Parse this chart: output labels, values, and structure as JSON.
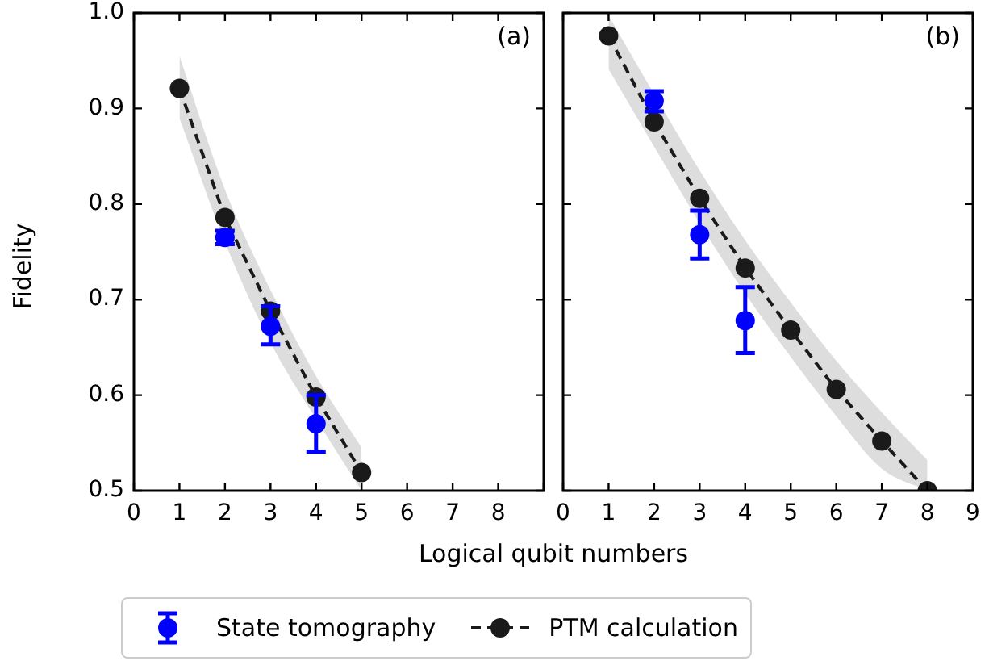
{
  "chart_data": [
    {
      "type": "line",
      "ylabel": "Fidelity",
      "xlabel": "Logical qubit numbers",
      "annotations": [
        "(a)"
      ],
      "legend": "bottom",
      "grid": false,
      "xlim": [
        0,
        9
      ],
      "xticks": [
        0,
        1,
        2,
        3,
        4,
        5,
        6,
        7,
        8,
        {
          "value": 9,
          "label": null
        }
      ],
      "ylim": [
        0.5,
        1.0
      ],
      "yticks": [
        0.5,
        0.6,
        0.7,
        0.8,
        0.9,
        {
          "value": 1.0,
          "label": "1.0"
        }
      ],
      "series": [
        {
          "name": "State tomography",
          "type": "scatter",
          "color": "#0000ff",
          "marker": "circle",
          "x": [
            2,
            3,
            4
          ],
          "values": [
            0.765,
            0.672,
            0.57
          ],
          "errors": [
            [
              0.758,
              0.772
            ],
            [
              0.653,
              0.693
            ],
            [
              0.541,
              0.6
            ]
          ]
        },
        {
          "name": "PTM calculation",
          "type": "line",
          "color": "#1a1a1a",
          "marker": "circle",
          "line_style": "dashed",
          "x": [
            1,
            2,
            3,
            4,
            5
          ],
          "values": [
            0.921,
            0.786,
            0.688,
            0.598,
            0.519
          ],
          "lower": [
            0.89,
            0.76,
            0.655,
            0.575,
            0.5
          ],
          "upper": [
            0.955,
            0.815,
            0.71,
            0.62,
            0.545
          ]
        }
      ]
    },
    {
      "type": "line",
      "annotations": [
        "(b)"
      ],
      "grid": false,
      "tick_labels": "x",
      "xlim": [
        0,
        9
      ],
      "xticks": [
        0,
        1,
        2,
        3,
        4,
        5,
        6,
        7,
        8,
        9
      ],
      "ylim": [
        0.5,
        1.0
      ],
      "yticks": [
        {
          "value": 0.5,
          "label": null
        },
        {
          "value": 0.6,
          "label": null
        },
        {
          "value": 0.7,
          "label": null
        },
        {
          "value": 0.8,
          "label": null
        },
        {
          "value": 0.9,
          "label": null
        },
        {
          "value": 1.0,
          "label": null
        }
      ],
      "series": [
        {
          "type": "scatter",
          "color": "#0000ff",
          "marker": "circle",
          "x": [
            2,
            3,
            4
          ],
          "values": [
            0.908,
            0.768,
            0.678
          ],
          "errors": [
            [
              0.897,
              0.918
            ],
            [
              0.743,
              0.793
            ],
            [
              0.644,
              0.713
            ]
          ]
        },
        {
          "type": "line",
          "color": "#1a1a1a",
          "marker": "circle",
          "line_style": "dashed",
          "x": [
            1,
            2,
            3,
            4,
            5,
            6,
            7,
            8
          ],
          "values": [
            0.976,
            0.886,
            0.806,
            0.733,
            0.668,
            0.606,
            0.552,
            0.5
          ],
          "lower": [
            0.941,
            0.86,
            0.78,
            0.706,
            0.64,
            0.578,
            0.523,
            0.5
          ],
          "upper": [
            0.997,
            0.915,
            0.835,
            0.762,
            0.697,
            0.636,
            0.582,
            0.532
          ]
        }
      ]
    }
  ]
}
